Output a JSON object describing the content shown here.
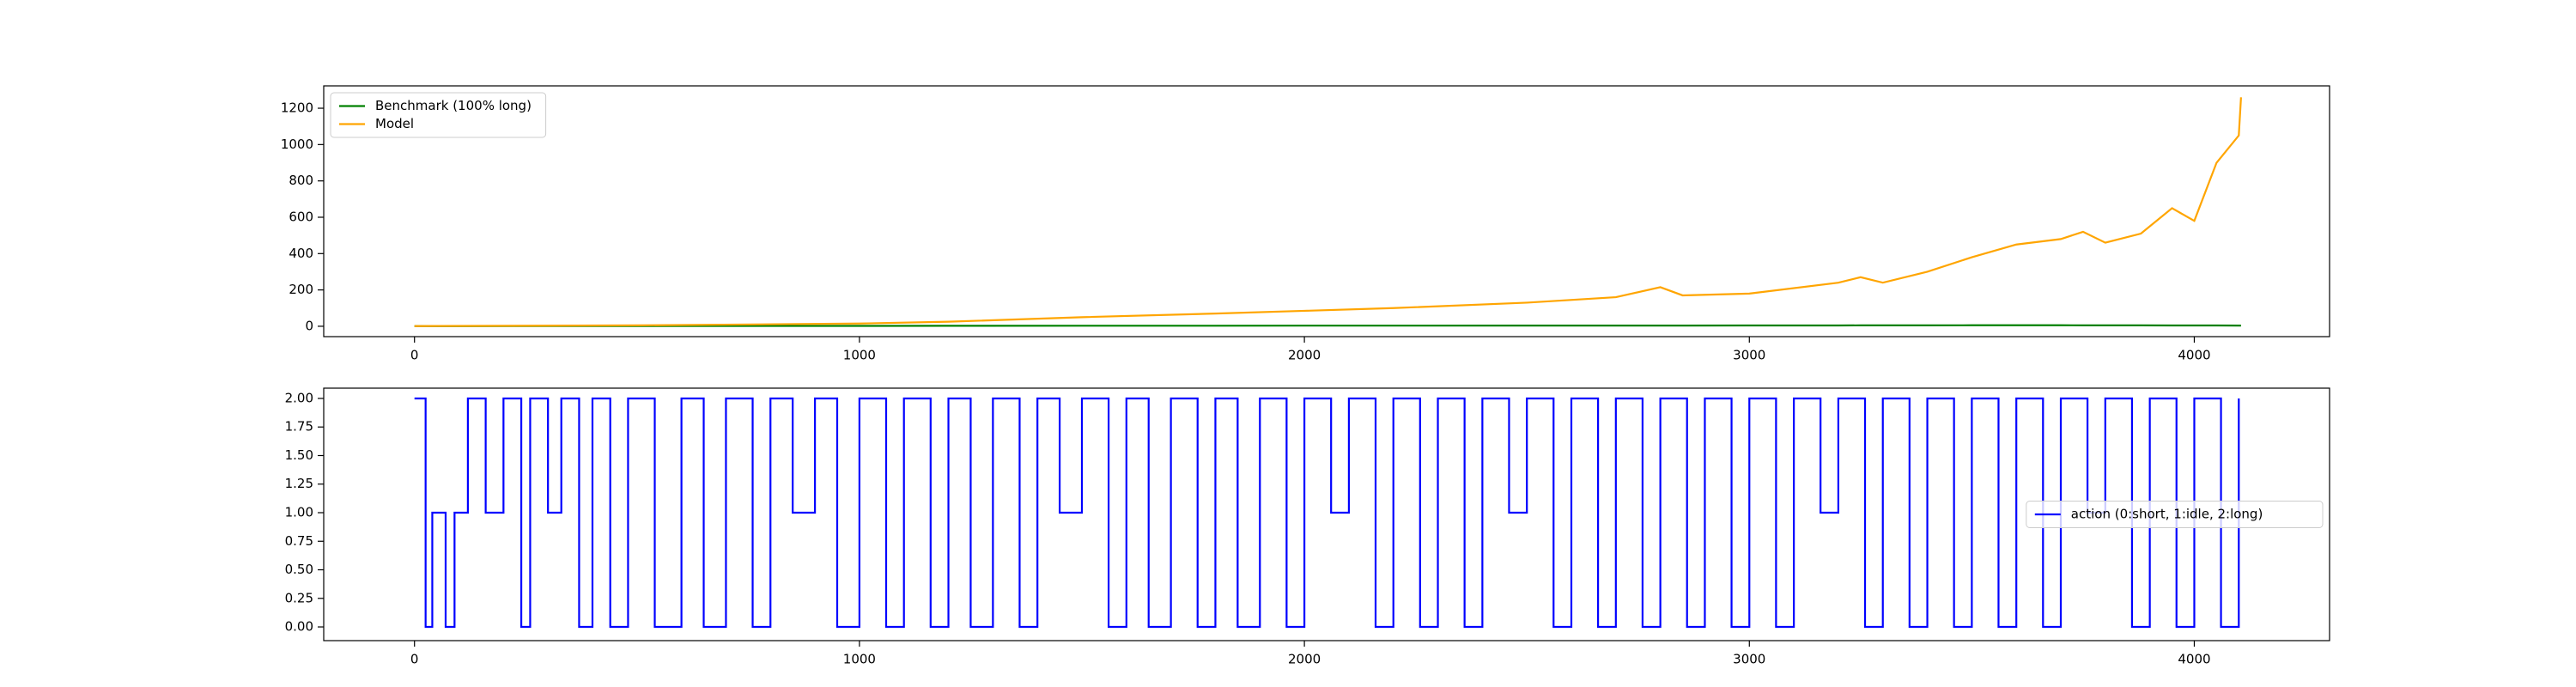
{
  "chart_data": [
    {
      "type": "line",
      "legend": "upper left",
      "x": [
        0,
        500,
        1000,
        1200,
        1500,
        1800,
        2000,
        2200,
        2500,
        2700,
        2800,
        2850,
        3000,
        3200,
        3250,
        3300,
        3400,
        3500,
        3600,
        3700,
        3750,
        3800,
        3880,
        3950,
        4000,
        4050,
        4100,
        4105
      ],
      "series": [
        {
          "name": "Benchmark (100% long)",
          "color": "#008000",
          "values": [
            1,
            1.5,
            2,
            2.5,
            3,
            3,
            3.5,
            3.5,
            4,
            4,
            4,
            4,
            4.5,
            4.5,
            5,
            5,
            5,
            5.5,
            5.5,
            5.5,
            5,
            5,
            5,
            4.5,
            4.5,
            4.5,
            4,
            4
          ]
        },
        {
          "name": "Model",
          "color": "#ffa500",
          "values": [
            1,
            5,
            15,
            25,
            50,
            70,
            85,
            100,
            130,
            160,
            215,
            170,
            180,
            240,
            270,
            240,
            300,
            380,
            450,
            480,
            520,
            460,
            510,
            650,
            580,
            900,
            1050,
            1260
          ]
        }
      ],
      "xlim": [
        -204,
        4304
      ],
      "xticks": [
        0,
        1000,
        2000,
        3000,
        4000
      ],
      "ylim": [
        -57,
        1323
      ],
      "yticks": [
        0,
        200,
        400,
        600,
        800,
        1000,
        1200
      ]
    },
    {
      "type": "line",
      "legend": "center right",
      "drawstyle": "steps-post",
      "x": [
        0,
        25,
        40,
        70,
        90,
        120,
        160,
        200,
        240,
        260,
        300,
        330,
        370,
        400,
        440,
        480,
        540,
        600,
        650,
        700,
        760,
        800,
        850,
        900,
        950,
        1000,
        1060,
        1100,
        1160,
        1200,
        1250,
        1300,
        1360,
        1400,
        1450,
        1500,
        1560,
        1600,
        1650,
        1700,
        1760,
        1800,
        1850,
        1900,
        1960,
        2000,
        2060,
        2100,
        2160,
        2200,
        2260,
        2300,
        2360,
        2400,
        2460,
        2500,
        2560,
        2600,
        2660,
        2700,
        2760,
        2800,
        2860,
        2900,
        2960,
        3000,
        3060,
        3100,
        3160,
        3200,
        3260,
        3300,
        3360,
        3400,
        3460,
        3500,
        3560,
        3600,
        3660,
        3700,
        3760,
        3800,
        3860,
        3900,
        3960,
        4000,
        4060,
        4100
      ],
      "series": [
        {
          "name": "action (0:short, 1:idle, 2:long)",
          "color": "#0000ff",
          "values": [
            2,
            0,
            1,
            0,
            1,
            2,
            1,
            2,
            0,
            2,
            1,
            2,
            0,
            2,
            0,
            2,
            0,
            2,
            0,
            2,
            0,
            2,
            1,
            2,
            0,
            2,
            0,
            2,
            0,
            2,
            0,
            2,
            0,
            2,
            1,
            2,
            0,
            2,
            0,
            2,
            0,
            2,
            0,
            2,
            0,
            2,
            1,
            2,
            0,
            2,
            0,
            2,
            0,
            2,
            1,
            2,
            0,
            2,
            0,
            2,
            0,
            2,
            0,
            2,
            0,
            2,
            0,
            2,
            1,
            2,
            0,
            2,
            0,
            2,
            0,
            2,
            0,
            2,
            0,
            2,
            1,
            2,
            0,
            2,
            0,
            2,
            0,
            2
          ]
        }
      ],
      "xlim": [
        -204,
        4304
      ],
      "xticks": [
        0,
        1000,
        2000,
        3000,
        4000
      ],
      "ylim": [
        -0.12,
        2.09
      ],
      "yticks": [
        {
          "value": 0,
          "label": "0.00"
        },
        {
          "value": 0.25,
          "label": "0.25"
        },
        {
          "value": 0.5,
          "label": "0.50"
        },
        {
          "value": 0.75,
          "label": "0.75"
        },
        {
          "value": 1,
          "label": "1.00"
        },
        {
          "value": 1.25,
          "label": "1.25"
        },
        {
          "value": 1.5,
          "label": "1.50"
        },
        {
          "value": 1.75,
          "label": "1.75"
        },
        {
          "value": 2,
          "label": "2.00"
        }
      ]
    }
  ]
}
